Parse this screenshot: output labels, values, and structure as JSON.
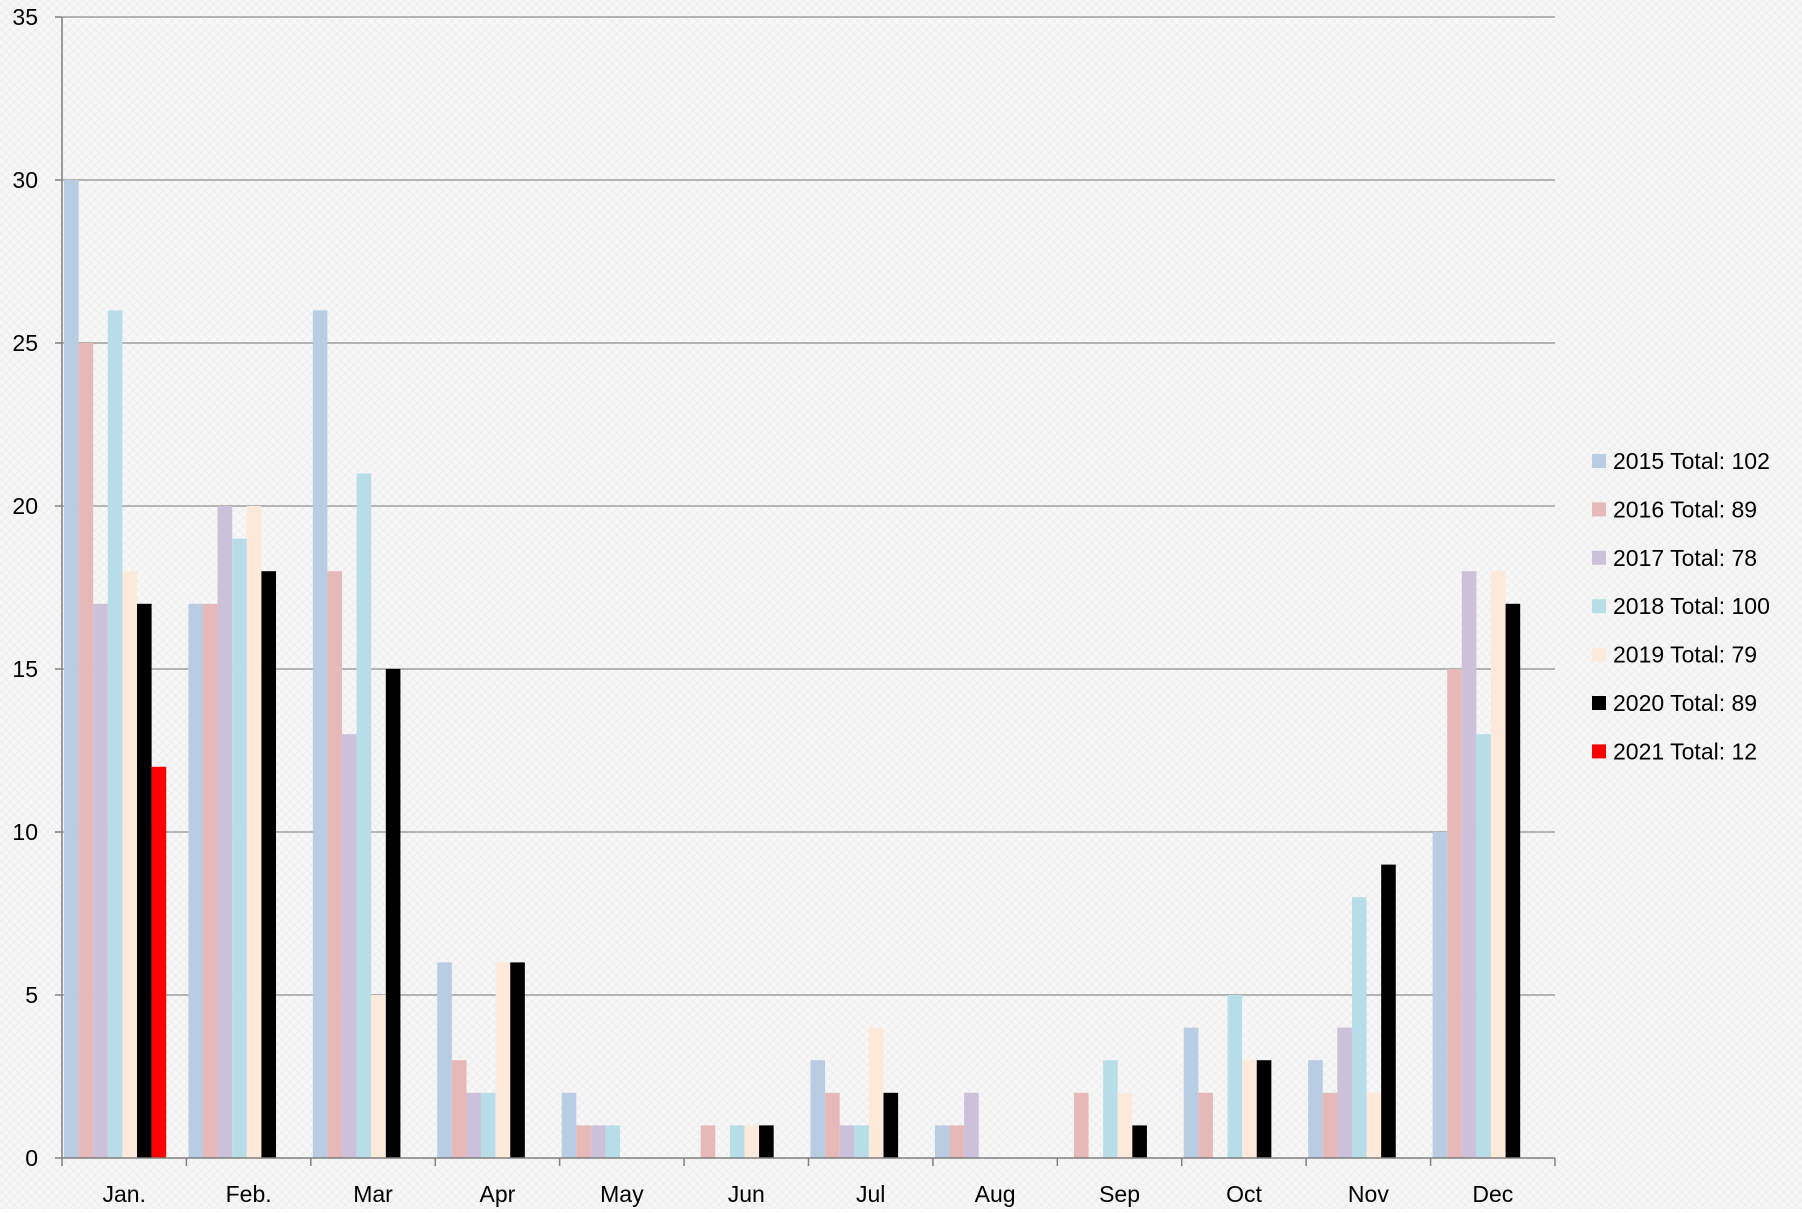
{
  "chart_data": {
    "type": "bar",
    "title": "",
    "xlabel": "",
    "ylabel": "",
    "ylim": [
      0,
      35
    ],
    "yticks": [
      0,
      5,
      10,
      15,
      20,
      25,
      30,
      35
    ],
    "grid": true,
    "legend_position": "right",
    "categories": [
      "Jan.",
      "Feb.",
      "Mar",
      "Apr",
      "May",
      "Jun",
      "Jul",
      "Aug",
      "Sep",
      "Oct",
      "Nov",
      "Dec"
    ],
    "series": [
      {
        "name": "2015 Total: 102",
        "color": "#b8cce4",
        "values": [
          30,
          17,
          26,
          6,
          2,
          0,
          3,
          1,
          0,
          4,
          3,
          10
        ]
      },
      {
        "name": "2016 Total: 89",
        "color": "#e6b9b8",
        "values": [
          25,
          17,
          18,
          3,
          1,
          1,
          2,
          1,
          2,
          2,
          2,
          15
        ]
      },
      {
        "name": "2017 Total: 78",
        "color": "#ccc0da",
        "values": [
          17,
          20,
          13,
          2,
          1,
          0,
          1,
          2,
          0,
          0,
          4,
          18
        ]
      },
      {
        "name": "2018 Total: 100",
        "color": "#b7dee8",
        "values": [
          26,
          19,
          21,
          2,
          1,
          1,
          1,
          0,
          3,
          5,
          8,
          13
        ]
      },
      {
        "name": "2019 Total: 79",
        "color": "#fde9d9",
        "values": [
          18,
          20,
          5,
          6,
          0,
          1,
          4,
          0,
          2,
          3,
          2,
          18
        ]
      },
      {
        "name": "2020 Total: 89",
        "color": "#000000",
        "values": [
          17,
          18,
          15,
          6,
          0,
          1,
          2,
          0,
          1,
          3,
          9,
          17
        ]
      },
      {
        "name": "2021 Total: 12",
        "color": "#ff0000",
        "values": [
          12,
          null,
          null,
          null,
          null,
          null,
          null,
          null,
          null,
          null,
          null,
          null
        ]
      }
    ]
  }
}
